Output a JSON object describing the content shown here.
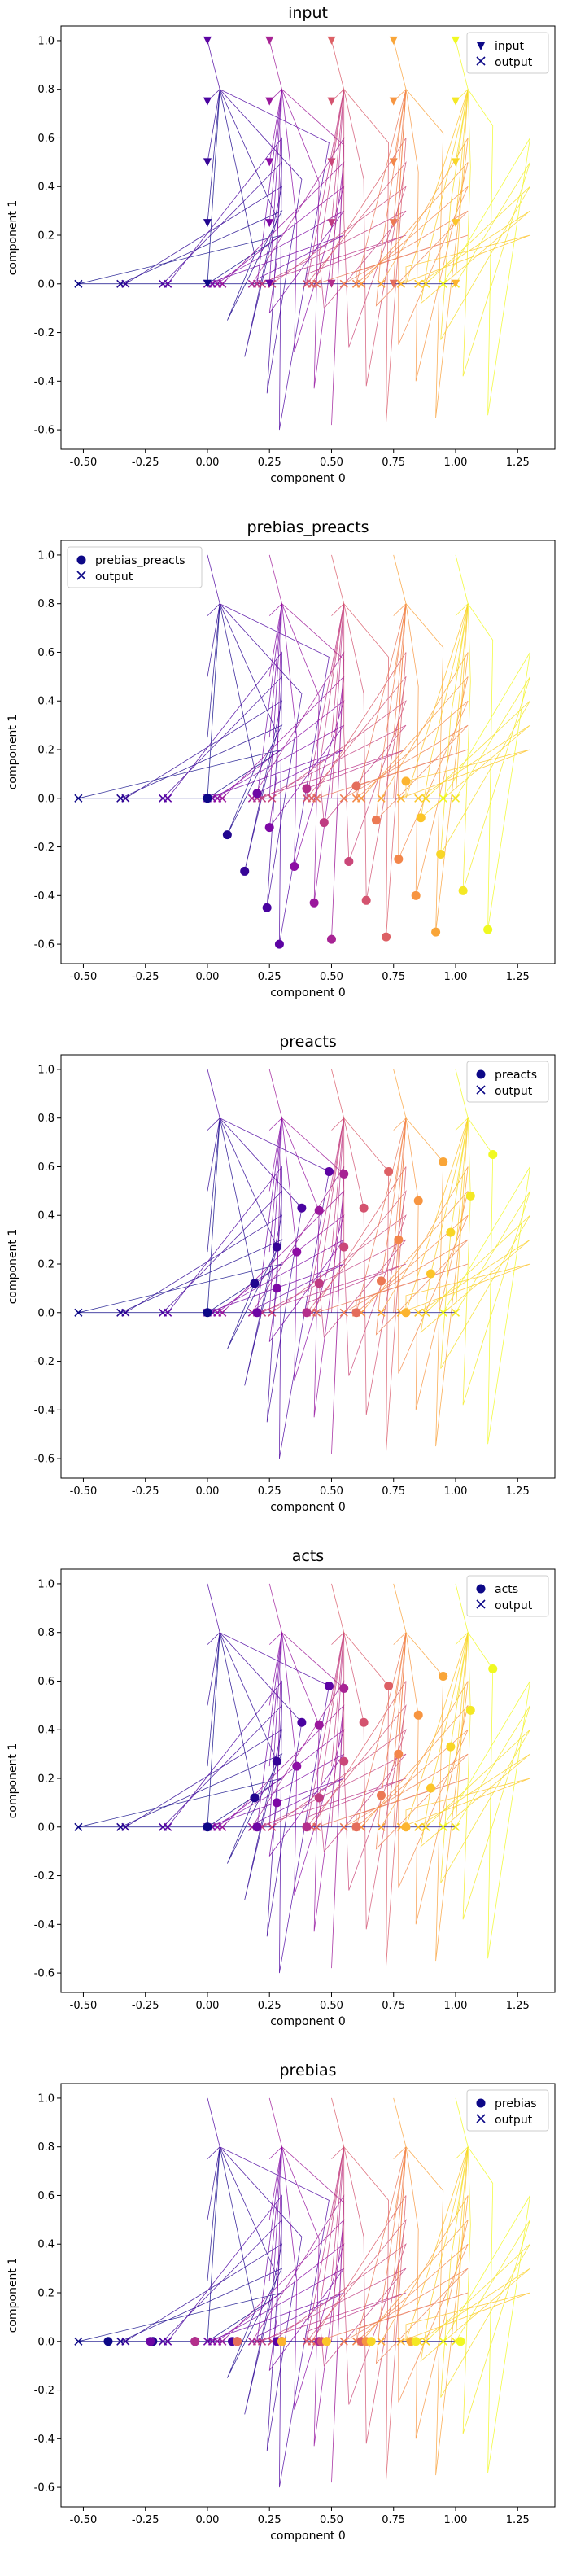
{
  "chart_data": [
    {
      "type": "scatter",
      "title": "input",
      "xlabel": "component 0",
      "ylabel": "component 1",
      "xlim": [
        -0.59,
        1.4
      ],
      "ylim": [
        -0.68,
        1.06
      ],
      "xticks": [
        "-0.50",
        "-0.25",
        "0.00",
        "0.25",
        "0.50",
        "0.75",
        "1.00",
        "1.25"
      ],
      "yticks": [
        "-0.6",
        "-0.4",
        "-0.2",
        "0.0",
        "0.2",
        "0.4",
        "0.6",
        "0.8",
        "1.0"
      ],
      "legend": {
        "placement": "top-right",
        "entries": [
          "input",
          "output"
        ]
      },
      "layer": "input"
    },
    {
      "type": "scatter",
      "title": "prebias_preacts",
      "xlabel": "component 0",
      "ylabel": "component 1",
      "xlim": [
        -0.59,
        1.4
      ],
      "ylim": [
        -0.68,
        1.06
      ],
      "xticks": [
        "-0.50",
        "-0.25",
        "0.00",
        "0.25",
        "0.50",
        "0.75",
        "1.00",
        "1.25"
      ],
      "yticks": [
        "-0.6",
        "-0.4",
        "-0.2",
        "0.0",
        "0.2",
        "0.4",
        "0.6",
        "0.8",
        "1.0"
      ],
      "legend": {
        "placement": "top-left",
        "entries": [
          "prebias_preacts",
          "output"
        ]
      },
      "layer": "prebias_preacts"
    },
    {
      "type": "scatter",
      "title": "preacts",
      "xlabel": "component 0",
      "ylabel": "component 1",
      "xlim": [
        -0.59,
        1.4
      ],
      "ylim": [
        -0.68,
        1.06
      ],
      "xticks": [
        "-0.50",
        "-0.25",
        "0.00",
        "0.25",
        "0.50",
        "0.75",
        "1.00",
        "1.25"
      ],
      "yticks": [
        "-0.6",
        "-0.4",
        "-0.2",
        "0.0",
        "0.2",
        "0.4",
        "0.6",
        "0.8",
        "1.0"
      ],
      "legend": {
        "placement": "top-right",
        "entries": [
          "preacts",
          "output"
        ]
      },
      "layer": "preacts"
    },
    {
      "type": "scatter",
      "title": "acts",
      "xlabel": "component 0",
      "ylabel": "component 1",
      "xlim": [
        -0.59,
        1.4
      ],
      "ylim": [
        -0.68,
        1.06
      ],
      "xticks": [
        "-0.50",
        "-0.25",
        "0.00",
        "0.25",
        "0.50",
        "0.75",
        "1.00",
        "1.25"
      ],
      "yticks": [
        "-0.6",
        "-0.4",
        "-0.2",
        "0.0",
        "0.2",
        "0.4",
        "0.6",
        "0.8",
        "1.0"
      ],
      "legend": {
        "placement": "top-right",
        "entries": [
          "acts",
          "output"
        ]
      },
      "layer": "acts"
    },
    {
      "type": "scatter",
      "title": "prebias",
      "xlabel": "component 0",
      "ylabel": "component 1",
      "xlim": [
        -0.59,
        1.4
      ],
      "ylim": [
        -0.68,
        1.06
      ],
      "xticks": [
        "-0.50",
        "-0.25",
        "0.00",
        "0.25",
        "0.50",
        "0.75",
        "1.00",
        "1.25"
      ],
      "yticks": [
        "-0.6",
        "-0.4",
        "-0.2",
        "0.0",
        "0.2",
        "0.4",
        "0.6",
        "0.8",
        "1.0"
      ],
      "legend": {
        "placement": "top-right",
        "entries": [
          "prebias",
          "output"
        ]
      },
      "layer": "prebias"
    }
  ],
  "grid": false,
  "colormap": [
    "#0d0887",
    "#5302a3",
    "#8b0aa5",
    "#b83289",
    "#db5c68",
    "#f48849",
    "#febd2a",
    "#f0f921"
  ],
  "input_grid": {
    "x": [
      0.0,
      0.25,
      0.5,
      0.75,
      1.0
    ],
    "y": [
      0.0,
      0.25,
      0.5,
      0.75,
      1.0
    ]
  },
  "output_points": {
    "x": [
      -0.52,
      -0.35,
      -0.33,
      -0.18,
      -0.16,
      0.0,
      0.02,
      0.04,
      0.06,
      0.18,
      0.2,
      0.22,
      0.26,
      0.4,
      0.42,
      0.44,
      0.55,
      0.6,
      0.62,
      0.7,
      0.78,
      0.85,
      0.88,
      1.0,
      0.95
    ],
    "y": [
      0,
      0,
      0,
      0,
      0,
      0,
      0,
      0,
      0,
      0,
      0,
      0,
      0,
      0,
      0,
      0,
      0,
      0,
      0,
      0,
      0,
      0,
      0,
      0,
      0
    ]
  },
  "prebias_preacts_points": {
    "x": [
      0.0,
      0.08,
      0.15,
      0.24,
      0.29,
      0.2,
      0.25,
      0.35,
      0.43,
      0.5,
      0.4,
      0.47,
      0.57,
      0.64,
      0.72,
      0.6,
      0.68,
      0.77,
      0.84,
      0.92,
      0.8,
      0.86,
      0.94,
      1.03,
      1.13
    ],
    "y": [
      0.0,
      -0.15,
      -0.3,
      -0.45,
      -0.6,
      0.02,
      -0.12,
      -0.28,
      -0.43,
      -0.58,
      0.04,
      -0.1,
      -0.26,
      -0.42,
      -0.57,
      0.05,
      -0.09,
      -0.25,
      -0.4,
      -0.55,
      0.07,
      -0.08,
      -0.23,
      -0.38,
      -0.54
    ]
  },
  "preacts_points": {
    "x": [
      0.0,
      0.19,
      0.28,
      0.38,
      0.49,
      0.2,
      0.28,
      0.36,
      0.45,
      0.55,
      0.4,
      0.45,
      0.55,
      0.63,
      0.73,
      0.6,
      0.7,
      0.77,
      0.85,
      0.95,
      0.8,
      0.9,
      0.98,
      1.06,
      1.15
    ],
    "y": [
      0.0,
      0.12,
      0.27,
      0.43,
      0.58,
      0.0,
      0.1,
      0.25,
      0.42,
      0.57,
      0.0,
      0.12,
      0.27,
      0.43,
      0.58,
      0.0,
      0.13,
      0.3,
      0.46,
      0.62,
      0.0,
      0.16,
      0.33,
      0.48,
      0.65
    ]
  },
  "prebias_points": {
    "x": [
      -0.4,
      -0.22,
      -0.05,
      0.1,
      0.28,
      -0.23,
      -0.05,
      0.12,
      0.3,
      0.45,
      -0.05,
      0.12,
      0.3,
      0.46,
      0.62,
      0.12,
      0.3,
      0.48,
      0.64,
      0.82,
      0.3,
      0.48,
      0.66,
      0.84,
      1.02
    ],
    "y": [
      0,
      0,
      0,
      0,
      0,
      0,
      0,
      0,
      0,
      0,
      0,
      0,
      0,
      0,
      0,
      0,
      0,
      0,
      0,
      0,
      0,
      0,
      0,
      0,
      0
    ]
  }
}
